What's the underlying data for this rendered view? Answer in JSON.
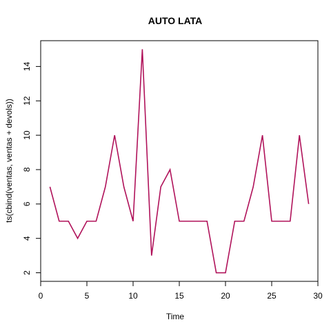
{
  "chart_data": {
    "type": "line",
    "title": "AUTO LATA",
    "xlabel": "Time",
    "ylabel": "ts(cbind(ventas, ventas + devols))",
    "xlim": [
      0,
      30
    ],
    "ylim": [
      1.5,
      15.5
    ],
    "x_ticks": [
      0,
      5,
      10,
      15,
      20,
      25,
      30
    ],
    "y_ticks": [
      2,
      4,
      6,
      8,
      10,
      12,
      14
    ],
    "grid": false,
    "line_color": "#B0125A",
    "series": [
      {
        "name": "ventas + devols",
        "x": [
          1,
          2,
          3,
          4,
          5,
          6,
          7,
          8,
          9,
          10,
          11,
          12,
          13,
          14,
          15,
          16,
          17,
          18,
          19,
          20,
          21,
          22,
          23,
          24,
          25,
          26,
          27,
          28,
          29
        ],
        "values": [
          7,
          5,
          5,
          4,
          5,
          5,
          7,
          10,
          7,
          5,
          15,
          3,
          7,
          8,
          5,
          5,
          5,
          5,
          2,
          2,
          5,
          5,
          7,
          10,
          5,
          5,
          5,
          10,
          6
        ]
      }
    ]
  }
}
